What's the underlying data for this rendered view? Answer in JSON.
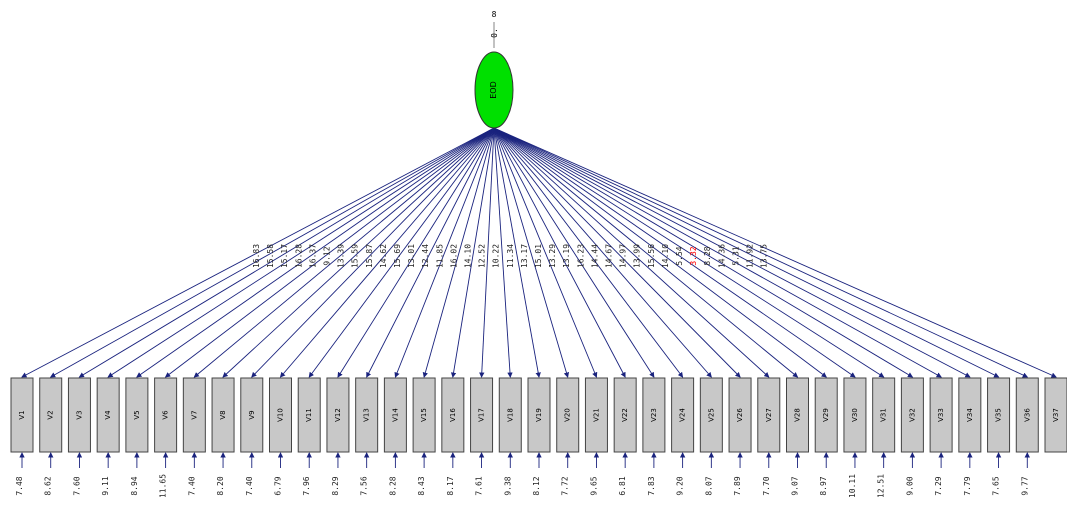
{
  "latent": {
    "name": "EOD",
    "variance_top": "8",
    "variance_sub": "0.",
    "fill_color": "#00e000"
  },
  "colors": {
    "arrow": "#1a237e",
    "box_fill": "#c8c8c8",
    "box_stroke": "#444444",
    "label_normal": "#222222",
    "label_highlight": "#ff0000"
  },
  "indicators": [
    {
      "name": "V1",
      "loading": "16.83",
      "error": "7.48"
    },
    {
      "name": "V2",
      "loading": "15.58",
      "error": "8.62"
    },
    {
      "name": "V3",
      "loading": "15.17",
      "error": "7.60"
    },
    {
      "name": "V4",
      "loading": "16.28",
      "error": "9.11"
    },
    {
      "name": "V5",
      "loading": "16.37",
      "error": "8.94"
    },
    {
      "name": "V6",
      "loading": "9.12",
      "error": "11.65"
    },
    {
      "name": "V7",
      "loading": "13.39",
      "error": "7.40"
    },
    {
      "name": "V8",
      "loading": "15.59",
      "error": "8.20"
    },
    {
      "name": "V9",
      "loading": "15.87",
      "error": "7.40"
    },
    {
      "name": "V10",
      "loading": "14.62",
      "error": "6.79"
    },
    {
      "name": "V11",
      "loading": "15.69",
      "error": "7.96"
    },
    {
      "name": "V12",
      "loading": "13.01",
      "error": "8.29"
    },
    {
      "name": "V13",
      "loading": "12.44",
      "error": "7.56"
    },
    {
      "name": "V14",
      "loading": "11.85",
      "error": "8.28"
    },
    {
      "name": "V15",
      "loading": "16.02",
      "error": "8.43"
    },
    {
      "name": "V16",
      "loading": "14.10",
      "error": "8.17"
    },
    {
      "name": "V17",
      "loading": "12.52",
      "error": "7.61"
    },
    {
      "name": "V18",
      "loading": "10.22",
      "error": "9.38"
    },
    {
      "name": "V19",
      "loading": "11.34",
      "error": "8.12"
    },
    {
      "name": "V20",
      "loading": "13.17",
      "error": "7.72"
    },
    {
      "name": "V21",
      "loading": "15.01",
      "error": "9.65"
    },
    {
      "name": "V22",
      "loading": "13.29",
      "error": "6.81"
    },
    {
      "name": "V23",
      "loading": "13.19",
      "error": "7.83"
    },
    {
      "name": "V24",
      "loading": "16.23",
      "error": "9.20"
    },
    {
      "name": "V25",
      "loading": "14.44",
      "error": "8.07"
    },
    {
      "name": "V26",
      "loading": "14.67",
      "error": "7.89"
    },
    {
      "name": "V27",
      "loading": "14.97",
      "error": "7.70"
    },
    {
      "name": "V28",
      "loading": "13.99",
      "error": "9.07"
    },
    {
      "name": "V29",
      "loading": "15.56",
      "error": "8.97"
    },
    {
      "name": "V30",
      "loading": "14.10",
      "error": "10.11"
    },
    {
      "name": "V31",
      "loading": "5.54",
      "error": "12.51"
    },
    {
      "name": "V32",
      "loading": "3.32",
      "error": "9.00",
      "highlight": true
    },
    {
      "name": "V33",
      "loading": "8.28",
      "error": "7.29"
    },
    {
      "name": "V34",
      "loading": "14.36",
      "error": "7.79"
    },
    {
      "name": "V35",
      "loading": "5.31",
      "error": "7.65"
    },
    {
      "name": "V36",
      "loading": "11.92",
      "error": "9.77"
    },
    {
      "name": "V37",
      "loading": "13.75",
      "error": ""
    }
  ]
}
